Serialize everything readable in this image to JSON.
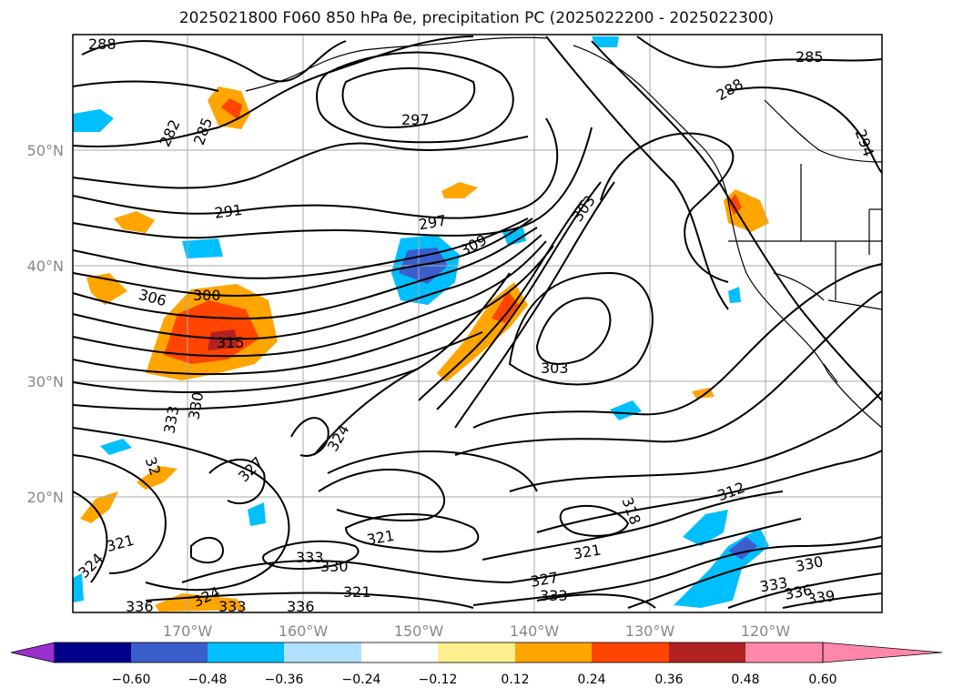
{
  "figure": {
    "title": "2025021800 F060 850 hPa θe, precipitation PC (2025022200 - 2025022300)"
  },
  "axes": {
    "lon_labels": [
      "170°W",
      "160°W",
      "150°W",
      "140°W",
      "130°W",
      "120°W"
    ],
    "lat_labels": [
      "50°N",
      "40°N",
      "30°N",
      "20°N"
    ]
  },
  "contour_labels": [
    "288",
    "285",
    "288",
    "294",
    "297",
    "291",
    "282",
    "285",
    "297",
    "309",
    "303",
    "306",
    "300",
    "315",
    "303",
    "333",
    "330",
    "324",
    "327",
    "32",
    "318",
    "312",
    "321",
    "321",
    "333",
    "330",
    "321",
    "327",
    "333",
    "321",
    "330",
    "333",
    "336",
    "339",
    "324",
    "336",
    "333",
    "336",
    "324"
  ],
  "colorbar": {
    "colors": [
      "#9b30d0",
      "#00008b",
      "#3a5fcd",
      "#00bfff",
      "#b0e2ff",
      "#ffffff",
      "#fff08f",
      "#ffa500",
      "#ff4500",
      "#b22222",
      "#ff88aa"
    ],
    "tick_labels": [
      "−0.60",
      "−0.48",
      "−0.36",
      "−0.24",
      "−0.12",
      "0.12",
      "0.24",
      "0.36",
      "0.48",
      "0.60"
    ]
  }
}
